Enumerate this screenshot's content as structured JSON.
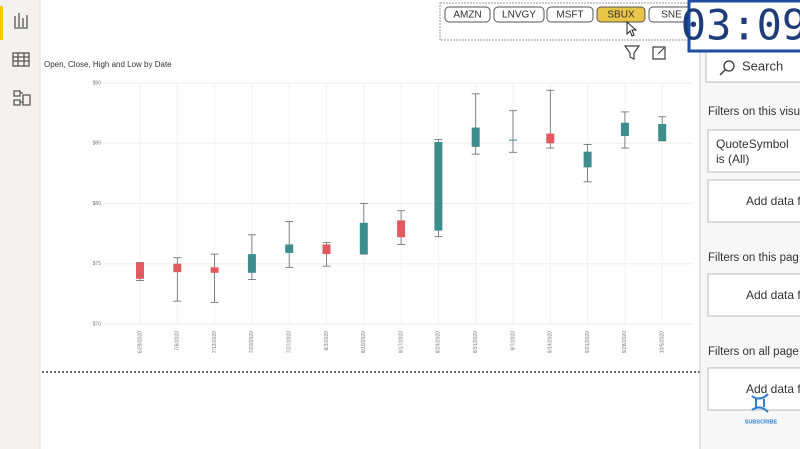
{
  "slicer": {
    "options": [
      "AMZN",
      "LNVGY",
      "MSFT",
      "SBUX",
      "SNE"
    ],
    "selected": "SBUX"
  },
  "timer": "03:09",
  "chart_data": {
    "type": "candlestick",
    "title": "Open, Close, High and Low by Date",
    "x": [
      "6/29/2020",
      "7/6/2020",
      "7/13/2020",
      "7/20/2020",
      "7/27/2020",
      "8/3/2020",
      "8/10/2020",
      "8/17/2020",
      "8/24/2020",
      "8/31/2020",
      "9/7/2020",
      "9/14/2020",
      "9/21/2020",
      "9/28/2020",
      "10/5/2020"
    ],
    "open": [
      75.1,
      75.0,
      74.7,
      74.25,
      75.9,
      76.6,
      75.8,
      78.6,
      77.75,
      84.7,
      85.3,
      85.8,
      83.0,
      85.6,
      85.2
    ],
    "high": [
      75.1,
      75.5,
      75.8,
      77.4,
      78.5,
      76.75,
      80.0,
      79.4,
      85.3,
      89.1,
      87.7,
      89.4,
      84.9,
      87.6,
      87.2
    ],
    "low": [
      73.6,
      71.9,
      71.8,
      73.7,
      74.7,
      74.8,
      75.8,
      76.6,
      77.25,
      84.1,
      84.25,
      84.6,
      81.8,
      84.6,
      85.2
    ],
    "close": [
      73.75,
      74.3,
      74.25,
      75.8,
      76.6,
      75.8,
      78.4,
      77.2,
      85.1,
      86.3,
      85.3,
      85.0,
      84.3,
      86.7,
      86.6
    ],
    "up_color": "#3d8d8f",
    "down_color": "#e05a60",
    "ylim": [
      70,
      90
    ],
    "yticks": [
      {
        "value": 70,
        "label": "$70"
      },
      {
        "value": 75,
        "label": "$75"
      },
      {
        "value": 80,
        "label": "$80"
      },
      {
        "value": 85,
        "label": "$85"
      },
      {
        "value": 90,
        "label": "$90"
      }
    ],
    "grid": true
  },
  "filters_pane": {
    "search": "Search",
    "visual_heading": "Filters on this visu",
    "field_name": "QuoteSymbol",
    "field_state": "is (All)",
    "add_visual": "Add data f",
    "page_heading": "Filters on this pag",
    "add_page": "Add data f",
    "all_heading": "Filters on all page",
    "add_all": "Add data f"
  },
  "subscribe": "SUBSCRIBE"
}
